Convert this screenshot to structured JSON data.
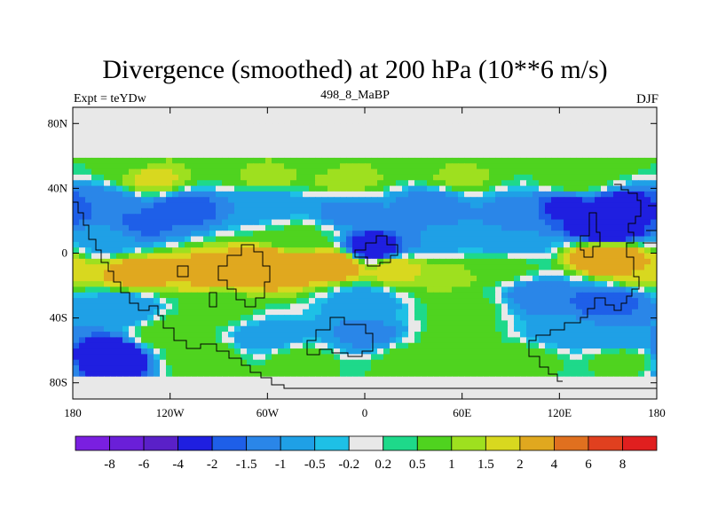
{
  "chart_data": {
    "type": "heatmap",
    "title": "Divergence (smoothed) at 200 hPa (10**6 m/s)",
    "subtitle": "498_8_MaBP",
    "left_label": "Expt = teYDw",
    "right_label": "DJF",
    "xlabel": "",
    "ylabel": "",
    "xlim": [
      -180,
      180
    ],
    "ylim": [
      -90,
      90
    ],
    "x_ticks": [
      {
        "value": -180,
        "label": "180"
      },
      {
        "value": -120,
        "label": "120W"
      },
      {
        "value": -60,
        "label": "60W"
      },
      {
        "value": 0,
        "label": "0"
      },
      {
        "value": 60,
        "label": "60E"
      },
      {
        "value": 120,
        "label": "120E"
      },
      {
        "value": 180,
        "label": "180"
      }
    ],
    "y_ticks": [
      {
        "value": 80,
        "label": "80N"
      },
      {
        "value": 40,
        "label": "40N"
      },
      {
        "value": 0,
        "label": "0"
      },
      {
        "value": -40,
        "label": "40S"
      },
      {
        "value": -80,
        "label": "80S"
      }
    ],
    "colorbar": {
      "colors": [
        "#7a1fe0",
        "#6a1fd8",
        "#5a20c8",
        "#1f1fe0",
        "#1e5fe8",
        "#2a86e8",
        "#1fa0e6",
        "#1ec0e6",
        "#e8e8e8",
        "#1ed98a",
        "#4fd31f",
        "#9ee01f",
        "#d8d81f",
        "#e0a81f",
        "#e0701f",
        "#e0401f",
        "#e01f1f"
      ],
      "labels": [
        "-8",
        "-6",
        "-4",
        "-2",
        "-1.5",
        "-1",
        "-0.5",
        "-0.2",
        "0.2",
        "0.5",
        "1",
        "1.5",
        "2",
        "4",
        "6",
        "8"
      ]
    },
    "field_sources": [
      {
        "lon": -150,
        "lat": 57,
        "value": 0.6
      },
      {
        "lon": -90,
        "lat": 57,
        "value": 0.8
      },
      {
        "lon": -30,
        "lat": 57,
        "value": 0.7
      },
      {
        "lon": 30,
        "lat": 57,
        "value": 0.6
      },
      {
        "lon": 90,
        "lat": 57,
        "value": 0.5
      },
      {
        "lon": 150,
        "lat": 57,
        "value": 0.7
      },
      {
        "lon": -130,
        "lat": 46,
        "value": 1.6
      },
      {
        "lon": -60,
        "lat": 48,
        "value": 1.2
      },
      {
        "lon": -10,
        "lat": 46,
        "value": 1.3
      },
      {
        "lon": 60,
        "lat": 48,
        "value": 1.2
      },
      {
        "lon": 130,
        "lat": 46,
        "value": 1.0
      },
      {
        "lon": -160,
        "lat": 30,
        "value": -1.5
      },
      {
        "lon": -110,
        "lat": 28,
        "value": -1.8
      },
      {
        "lon": -60,
        "lat": 30,
        "value": -1.0
      },
      {
        "lon": -10,
        "lat": 26,
        "value": -1.2
      },
      {
        "lon": 40,
        "lat": 30,
        "value": -1.3
      },
      {
        "lon": 90,
        "lat": 26,
        "value": -1.1
      },
      {
        "lon": 125,
        "lat": 28,
        "value": -2.2
      },
      {
        "lon": 160,
        "lat": 28,
        "value": -2.6
      },
      {
        "lon": 150,
        "lat": 14,
        "value": -3.0
      },
      {
        "lon": -135,
        "lat": 18,
        "value": -1.6
      },
      {
        "lon": -160,
        "lat": 8,
        "value": -0.8
      },
      {
        "lon": -40,
        "lat": 10,
        "value": 0.6
      },
      {
        "lon": 5,
        "lat": 3,
        "value": -2.8
      },
      {
        "lon": 40,
        "lat": 8,
        "value": -1.0
      },
      {
        "lon": 90,
        "lat": 6,
        "value": -1.0
      },
      {
        "lon": -140,
        "lat": -12,
        "value": 2.4
      },
      {
        "lon": -100,
        "lat": -10,
        "value": 2.2
      },
      {
        "lon": -60,
        "lat": -8,
        "value": 3.2
      },
      {
        "lon": -20,
        "lat": -6,
        "value": 3.0
      },
      {
        "lon": 20,
        "lat": -10,
        "value": 1.8
      },
      {
        "lon": 50,
        "lat": -14,
        "value": 1.2
      },
      {
        "lon": 85,
        "lat": -8,
        "value": 0.8
      },
      {
        "lon": 150,
        "lat": -2,
        "value": 3.4
      },
      {
        "lon": 170,
        "lat": -10,
        "value": 2.0
      },
      {
        "lon": -150,
        "lat": -34,
        "value": -1.0
      },
      {
        "lon": -90,
        "lat": -36,
        "value": 0.6
      },
      {
        "lon": 0,
        "lat": -30,
        "value": -0.8
      },
      {
        "lon": 60,
        "lat": -34,
        "value": 0.7
      },
      {
        "lon": 110,
        "lat": -26,
        "value": -1.5
      },
      {
        "lon": 150,
        "lat": -30,
        "value": -1.8
      },
      {
        "lon": -120,
        "lat": -50,
        "value": 0.9
      },
      {
        "lon": -60,
        "lat": -52,
        "value": -0.9
      },
      {
        "lon": 0,
        "lat": -50,
        "value": -1.2
      },
      {
        "lon": 60,
        "lat": -52,
        "value": 0.8
      },
      {
        "lon": 120,
        "lat": -50,
        "value": -0.8
      },
      {
        "lon": 160,
        "lat": -52,
        "value": -1.0
      },
      {
        "lon": -160,
        "lat": -64,
        "value": -3.6
      },
      {
        "lon": -100,
        "lat": -64,
        "value": 1.0
      },
      {
        "lon": -40,
        "lat": -66,
        "value": 0.7
      },
      {
        "lon": 30,
        "lat": -66,
        "value": 0.8
      },
      {
        "lon": 100,
        "lat": -64,
        "value": 0.7
      },
      {
        "lon": 160,
        "lat": -66,
        "value": 0.8
      },
      {
        "lon": -60,
        "lat": 80,
        "value": -0.6
      },
      {
        "lon": 60,
        "lat": 80,
        "value": 0.0
      }
    ]
  }
}
